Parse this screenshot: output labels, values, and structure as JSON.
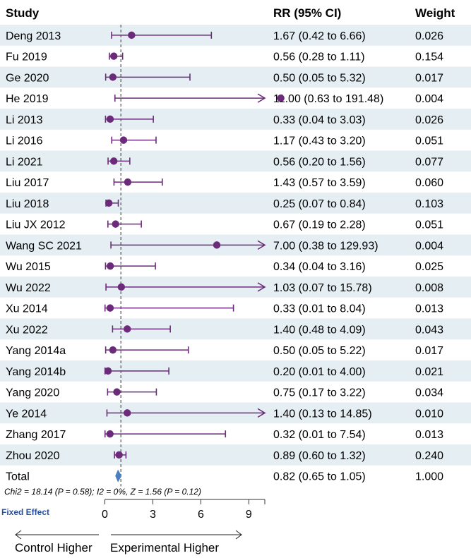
{
  "chart_data": {
    "type": "forest",
    "headers": {
      "study": "Study",
      "rr": "RR (95% CI)",
      "weight": "Weight"
    },
    "rows": [
      {
        "study": "Deng 2013",
        "rr": 1.67,
        "lo": 0.42,
        "hi": 6.66,
        "ci_text": "1.67 (0.42 to 6.66)",
        "weight": "0.026"
      },
      {
        "study": "Fu 2019",
        "rr": 0.56,
        "lo": 0.28,
        "hi": 1.11,
        "ci_text": "0.56 (0.28 to 1.11)",
        "weight": "0.154"
      },
      {
        "study": "Ge 2020",
        "rr": 0.5,
        "lo": 0.05,
        "hi": 5.32,
        "ci_text": "0.50 (0.05 to 5.32)",
        "weight": "0.017"
      },
      {
        "study": "He 2019",
        "rr": 11.0,
        "lo": 0.63,
        "hi": 191.48,
        "ci_text": "11.00 (0.63 to 191.48)",
        "weight": "0.004"
      },
      {
        "study": "Li 2013",
        "rr": 0.33,
        "lo": 0.04,
        "hi": 3.03,
        "ci_text": "0.33 (0.04 to 3.03)",
        "weight": "0.026"
      },
      {
        "study": "Li 2016",
        "rr": 1.17,
        "lo": 0.43,
        "hi": 3.2,
        "ci_text": "1.17 (0.43 to 3.20)",
        "weight": "0.051"
      },
      {
        "study": "Li 2021",
        "rr": 0.56,
        "lo": 0.2,
        "hi": 1.56,
        "ci_text": "0.56 (0.20 to 1.56)",
        "weight": "0.077"
      },
      {
        "study": "Liu 2017",
        "rr": 1.43,
        "lo": 0.57,
        "hi": 3.59,
        "ci_text": "1.43 (0.57 to 3.59)",
        "weight": "0.060"
      },
      {
        "study": "Liu 2018",
        "rr": 0.25,
        "lo": 0.07,
        "hi": 0.84,
        "ci_text": "0.25 (0.07 to 0.84)",
        "weight": "0.103"
      },
      {
        "study": "Liu JX 2012",
        "rr": 0.67,
        "lo": 0.19,
        "hi": 2.28,
        "ci_text": "0.67 (0.19 to 2.28)",
        "weight": "0.051"
      },
      {
        "study": "Wang SC 2021",
        "rr": 7.0,
        "lo": 0.38,
        "hi": 129.93,
        "ci_text": "7.00 (0.38 to 129.93)",
        "weight": "0.004"
      },
      {
        "study": "Wu 2015",
        "rr": 0.34,
        "lo": 0.04,
        "hi": 3.16,
        "ci_text": "0.34 (0.04 to 3.16)",
        "weight": "0.025"
      },
      {
        "study": "Wu 2022",
        "rr": 1.03,
        "lo": 0.07,
        "hi": 15.78,
        "ci_text": "1.03 (0.07 to 15.78)",
        "weight": "0.008"
      },
      {
        "study": "Xu 2014",
        "rr": 0.33,
        "lo": 0.01,
        "hi": 8.04,
        "ci_text": "0.33 (0.01 to 8.04)",
        "weight": "0.013"
      },
      {
        "study": "Xu 2022",
        "rr": 1.4,
        "lo": 0.48,
        "hi": 4.09,
        "ci_text": "1.40 (0.48 to 4.09)",
        "weight": "0.043"
      },
      {
        "study": "Yang 2014a",
        "rr": 0.5,
        "lo": 0.05,
        "hi": 5.22,
        "ci_text": "0.50 (0.05 to 5.22)",
        "weight": "0.017"
      },
      {
        "study": "Yang 2014b",
        "rr": 0.2,
        "lo": 0.01,
        "hi": 4.0,
        "ci_text": "0.20 (0.01 to 4.00)",
        "weight": "0.021"
      },
      {
        "study": "Yang 2020",
        "rr": 0.75,
        "lo": 0.17,
        "hi": 3.22,
        "ci_text": "0.75 (0.17 to 3.22)",
        "weight": "0.034"
      },
      {
        "study": "Ye 2014",
        "rr": 1.4,
        "lo": 0.13,
        "hi": 14.85,
        "ci_text": "1.40 (0.13 to 14.85)",
        "weight": "0.010"
      },
      {
        "study": "Zhang 2017",
        "rr": 0.32,
        "lo": 0.01,
        "hi": 7.54,
        "ci_text": "0.32 (0.01 to 7.54)",
        "weight": "0.013"
      },
      {
        "study": "Zhou 2020",
        "rr": 0.89,
        "lo": 0.6,
        "hi": 1.32,
        "ci_text": "0.89 (0.60 to 1.32)",
        "weight": "0.240"
      }
    ],
    "total": {
      "label": "Total",
      "rr": 0.82,
      "lo": 0.65,
      "hi": 1.05,
      "ci_text": "0.82 (0.65 to 1.05)",
      "weight": "1.000"
    },
    "heterogeneity": "Chi2 = 18.14 (P = 0.58); I2 = 0%, Z = 1.56 (P = 0.12)",
    "model_label": "Fixed Effect",
    "xaxis": {
      "range": [
        0,
        10
      ],
      "ticks": [
        0,
        3,
        6,
        9
      ],
      "reference": 1
    },
    "direction_left": "Control Higher",
    "direction_right": "Experimental Higher",
    "colors": {
      "point": "#6b2a7a",
      "diamond": "#4a7fc0",
      "stripe": "#e5eef3",
      "model": "#2a4ea0"
    }
  }
}
